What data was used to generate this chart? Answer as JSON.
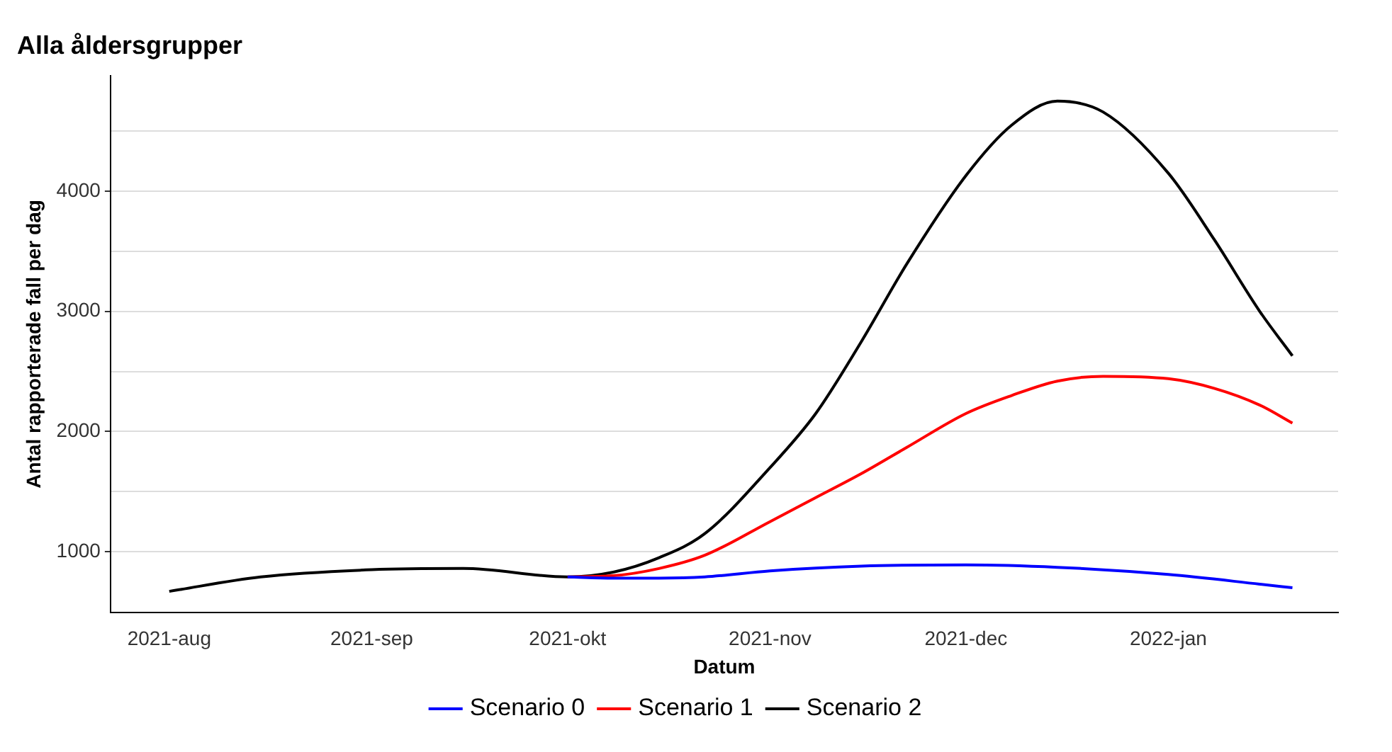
{
  "chart_data": {
    "type": "line",
    "title": "Alla åldersgrupper",
    "xlabel": "Datum",
    "ylabel": "Antal rapporterade fall per dag",
    "xlim": [
      "2021-07-23",
      "2022-01-27"
    ],
    "xticks": [
      {
        "value": "2021-08-01",
        "label": "2021-aug"
      },
      {
        "value": "2021-09-01",
        "label": "2021-sep"
      },
      {
        "value": "2021-10-01",
        "label": "2021-okt"
      },
      {
        "value": "2021-11-01",
        "label": "2021-nov"
      },
      {
        "value": "2021-12-01",
        "label": "2021-dec"
      },
      {
        "value": "2022-01-01",
        "label": "2022-jan"
      }
    ],
    "ylim": [
      495,
      4960
    ],
    "yticks": [
      1000,
      {
        "value": 1500,
        "label": null
      },
      2000,
      {
        "value": 2500,
        "label": null
      },
      3000,
      {
        "value": 3500,
        "label": null
      },
      4000,
      {
        "value": 4500,
        "label": null
      }
    ],
    "grid": "y",
    "legend": "bottom",
    "marker": "none",
    "line_style": "solid",
    "series": [
      {
        "name": "Scenario 0",
        "color": "#0000ff",
        "x": [
          "2021-10-01",
          "2021-10-08",
          "2021-10-15",
          "2021-10-22",
          "2021-11-01",
          "2021-11-15",
          "2021-12-01",
          "2021-12-15",
          "2022-01-01",
          "2022-01-15",
          "2022-01-20"
        ],
        "values": [
          790,
          780,
          780,
          790,
          840,
          880,
          890,
          870,
          810,
          730,
          700
        ]
      },
      {
        "name": "Scenario 1",
        "color": "#ff0000",
        "x": [
          "2021-10-01",
          "2021-10-08",
          "2021-10-15",
          "2021-10-22",
          "2021-11-01",
          "2021-11-08",
          "2021-11-15",
          "2021-11-22",
          "2021-12-01",
          "2021-12-08",
          "2021-12-15",
          "2021-12-22",
          "2022-01-01",
          "2022-01-08",
          "2022-01-15",
          "2022-01-20"
        ],
        "values": [
          790,
          800,
          860,
          970,
          1250,
          1450,
          1650,
          1870,
          2150,
          2300,
          2420,
          2460,
          2440,
          2360,
          2220,
          2070
        ]
      },
      {
        "name": "Scenario 2",
        "color": "#000000",
        "x": [
          "2021-08-01",
          "2021-08-15",
          "2021-09-01",
          "2021-09-15",
          "2021-10-01",
          "2021-10-08",
          "2021-10-15",
          "2021-10-22",
          "2021-11-01",
          "2021-11-08",
          "2021-11-15",
          "2021-11-22",
          "2021-12-01",
          "2021-12-08",
          "2021-12-15",
          "2021-12-22",
          "2022-01-01",
          "2022-01-08",
          "2022-01-15",
          "2022-01-20"
        ],
        "values": [
          670,
          790,
          850,
          860,
          790,
          830,
          950,
          1150,
          1700,
          2150,
          2750,
          3400,
          4130,
          4550,
          4750,
          4660,
          4150,
          3600,
          3000,
          2630
        ]
      }
    ]
  }
}
